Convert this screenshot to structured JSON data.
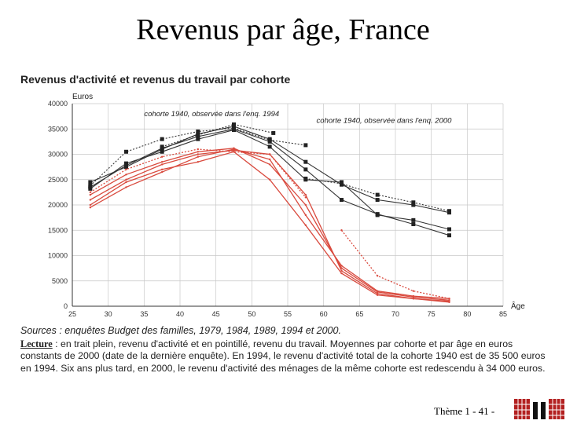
{
  "slide": {
    "title": "Revenus par âge, France",
    "footer": "Thème 1 - 41 -"
  },
  "chart_data": {
    "type": "line",
    "title": "Revenus d'activité et revenus du travail par cohorte",
    "ylabel": "Euros",
    "xlabel": "Âge",
    "xlim": [
      25,
      85
    ],
    "ylim": [
      0,
      40000
    ],
    "x_ticks": [
      25,
      30,
      35,
      40,
      45,
      50,
      55,
      60,
      65,
      70,
      75,
      80,
      85
    ],
    "y_ticks": [
      0,
      5000,
      10000,
      15000,
      20000,
      25000,
      30000,
      35000,
      40000
    ],
    "grid": true,
    "annotations": [
      {
        "text": "cohorte 1940, observée dans l'enq. 1994",
        "x": 35,
        "y": 37500
      },
      {
        "text": "cohorte 1940, observée dans l'enq. 2000",
        "x": 59,
        "y": 36200
      }
    ],
    "series": [
      {
        "color": "#333333",
        "style": "solid",
        "marker": "square",
        "points": [
          [
            27.5,
            24500
          ],
          [
            32.5,
            27500
          ],
          [
            37.5,
            31000
          ],
          [
            42.5,
            34000
          ],
          [
            47.5,
            35500
          ],
          [
            52.5,
            33000
          ],
          [
            57.5,
            28500
          ],
          [
            62.5,
            24000
          ],
          [
            67.5,
            21000
          ],
          [
            72.5,
            20000
          ],
          [
            77.5,
            18500
          ]
        ]
      },
      {
        "color": "#333333",
        "style": "solid",
        "marker": "square",
        "points": [
          [
            27.5,
            23500
          ],
          [
            32.5,
            27800
          ],
          [
            37.5,
            31200
          ],
          [
            42.5,
            33500
          ],
          [
            47.5,
            35000
          ],
          [
            52.5,
            32500
          ],
          [
            57.5,
            27000
          ],
          [
            62.5,
            21000
          ],
          [
            67.5,
            18200
          ],
          [
            72.5,
            16200
          ],
          [
            77.5,
            14000
          ]
        ]
      },
      {
        "color": "#333333",
        "style": "solid",
        "marker": "square",
        "points": [
          [
            27.5,
            23200
          ],
          [
            32.5,
            28200
          ],
          [
            37.5,
            30500
          ],
          [
            42.5,
            33000
          ],
          [
            47.5,
            34800
          ],
          [
            52.5,
            31500
          ],
          [
            57.5,
            25000
          ],
          [
            62.5,
            24500
          ],
          [
            67.5,
            18000
          ],
          [
            72.5,
            17000
          ],
          [
            77.5,
            15200
          ]
        ]
      },
      {
        "color": "#333333",
        "style": "dotted",
        "marker": "square",
        "points": [
          [
            27.5,
            23800
          ],
          [
            32.5,
            30500
          ],
          [
            37.5,
            33000
          ],
          [
            42.5,
            34500
          ],
          [
            47.5,
            35200
          ],
          [
            52.5,
            32800
          ],
          [
            57.5,
            31800
          ]
        ]
      },
      {
        "color": "#333333",
        "style": "dotted",
        "marker": "square",
        "points": [
          [
            37.5,
            31500
          ],
          [
            42.5,
            33800
          ],
          [
            47.5,
            35900
          ],
          [
            53,
            34200
          ]
        ]
      },
      {
        "color": "#333333",
        "style": "dotted",
        "marker": "square",
        "points": [
          [
            57.5,
            25200
          ],
          [
            62.5,
            24200
          ],
          [
            67.5,
            22000
          ],
          [
            72.5,
            20500
          ],
          [
            77.5,
            18800
          ]
        ]
      },
      {
        "color": "#d94a3e",
        "style": "solid",
        "marker": "none",
        "points": [
          [
            27.5,
            22000
          ],
          [
            32.5,
            26000
          ],
          [
            37.5,
            28500
          ],
          [
            42.5,
            30500
          ],
          [
            47.5,
            31200
          ],
          [
            52.5,
            28000
          ],
          [
            57.5,
            20000
          ],
          [
            62.5,
            7500
          ],
          [
            67.5,
            2800
          ],
          [
            72.5,
            1800
          ],
          [
            77.5,
            1200
          ]
        ]
      },
      {
        "color": "#d94a3e",
        "style": "solid",
        "marker": "none",
        "points": [
          [
            27.5,
            21000
          ],
          [
            32.5,
            25000
          ],
          [
            37.5,
            28000
          ],
          [
            42.5,
            30000
          ],
          [
            47.5,
            30800
          ],
          [
            52.5,
            30000
          ],
          [
            57.5,
            22000
          ],
          [
            62.5,
            7000
          ],
          [
            67.5,
            2500
          ],
          [
            72.5,
            1500
          ],
          [
            77.5,
            1000
          ]
        ]
      },
      {
        "color": "#d94a3e",
        "style": "solid",
        "marker": "none",
        "points": [
          [
            27.5,
            20000
          ],
          [
            32.5,
            24500
          ],
          [
            37.5,
            27000
          ],
          [
            42.5,
            28500
          ],
          [
            47.5,
            30500
          ],
          [
            52.5,
            25000
          ],
          [
            57.5,
            16000
          ],
          [
            62.5,
            6500
          ],
          [
            67.5,
            2200
          ],
          [
            72.5,
            1500
          ],
          [
            77.5,
            800
          ]
        ]
      },
      {
        "color": "#d94a3e",
        "style": "solid",
        "marker": "none",
        "points": [
          [
            27.5,
            19500
          ],
          [
            32.5,
            23500
          ],
          [
            37.5,
            26500
          ],
          [
            42.5,
            29500
          ],
          [
            47.5,
            31000
          ],
          [
            52.5,
            29000
          ],
          [
            57.5,
            18000
          ],
          [
            62.5,
            8000
          ],
          [
            67.5,
            3000
          ],
          [
            72.5,
            2000
          ],
          [
            77.5,
            1500
          ]
        ]
      },
      {
        "color": "#d94a3e",
        "style": "dotted",
        "marker": "none",
        "points": [
          [
            27.5,
            22500
          ],
          [
            32.5,
            27000
          ],
          [
            37.5,
            29500
          ],
          [
            42.5,
            31000
          ],
          [
            47.5,
            30500
          ],
          [
            52.5,
            30000
          ],
          [
            57.5,
            21500
          ]
        ]
      },
      {
        "color": "#d94a3e",
        "style": "dotted",
        "marker": "none",
        "points": [
          [
            62.5,
            15000
          ],
          [
            67.5,
            6000
          ],
          [
            72.5,
            3000
          ],
          [
            77.5,
            1500
          ]
        ]
      }
    ]
  },
  "sources": "Sources : enquêtes Budget des familles, 1979, 1984, 1989, 1994 et 2000.",
  "note": {
    "label": "Lecture",
    "text": " : en trait plein, revenu d'activité et en pointillé, revenu du travail. Moyennes par cohorte et par âge en euros constants de 2000 (date de la dernière enquête). En 1994, le revenu d'activité total de la cohorte 1940 est de 35 500 euros en 1994. Six ans plus tard, en 2000, le revenu d'activité des ménages de la même cohorte est redescendu à 34 000 euros."
  }
}
